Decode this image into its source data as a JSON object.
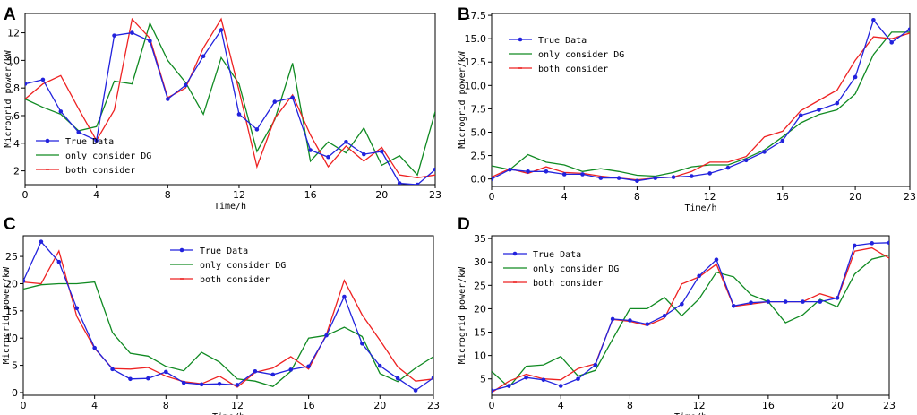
{
  "figure": {
    "legend_labels": [
      "True Data",
      "only consider DG",
      "both consider"
    ],
    "colors": {
      "true_data": "#2222dd",
      "only_dg": "#108a22",
      "both": "#ee2222"
    }
  },
  "chart_data": [
    {
      "panel": "A",
      "type": "line",
      "xlabel": "Time/h",
      "ylabel": "Microgrid power/kW",
      "xlim": [
        0,
        23
      ],
      "ylim": [
        1,
        13.4
      ],
      "xticks": [
        0,
        4,
        8,
        12,
        16,
        20,
        23
      ],
      "yticks": [
        2,
        4,
        6,
        8,
        10,
        12
      ],
      "ytick_labels": [
        "2",
        "4",
        "6",
        "8",
        "10",
        "12"
      ],
      "legend_position": "lower-left",
      "x": [
        0,
        1,
        2,
        3,
        4,
        5,
        6,
        7,
        8,
        9,
        10,
        11,
        12,
        13,
        14,
        15,
        16,
        17,
        18,
        19,
        20,
        21,
        22,
        23
      ],
      "series": [
        {
          "name": "True Data",
          "values": [
            8.3,
            8.6,
            6.3,
            4.8,
            4.2,
            11.8,
            12.0,
            11.4,
            7.2,
            8.2,
            10.3,
            12.2,
            6.1,
            5.0,
            7.0,
            7.3,
            3.5,
            3.0,
            4.1,
            3.2,
            3.4,
            1.1,
            1.0,
            2.1
          ]
        },
        {
          "name": "only consider DG",
          "values": [
            7.2,
            6.6,
            6.1,
            4.9,
            5.2,
            8.5,
            8.3,
            12.7,
            10.0,
            8.4,
            6.1,
            10.2,
            8.3,
            3.4,
            5.7,
            9.8,
            2.7,
            4.1,
            3.3,
            5.1,
            2.4,
            3.1,
            1.7,
            6.3
          ]
        },
        {
          "name": "both consider",
          "values": [
            7.2,
            8.3,
            8.9,
            6.5,
            4.2,
            6.4,
            13.0,
            11.6,
            7.3,
            8.0,
            10.9,
            13.0,
            7.8,
            2.3,
            5.8,
            7.5,
            4.6,
            2.3,
            3.8,
            2.7,
            3.7,
            1.7,
            1.5,
            1.7
          ]
        }
      ]
    },
    {
      "panel": "B",
      "type": "line",
      "xlabel": "Time/h",
      "ylabel": "Microgrid power/kW",
      "xlim": [
        0,
        23
      ],
      "ylim": [
        -0.8,
        17.7
      ],
      "xticks": [
        0,
        4,
        8,
        12,
        16,
        20,
        23
      ],
      "yticks": [
        0,
        2.5,
        5,
        7.5,
        10,
        12.5,
        15,
        17.5
      ],
      "ytick_labels": [
        "0.0",
        "2.5",
        "5.0",
        "7.5",
        "10.0",
        "12.5",
        "15.0",
        "17.5"
      ],
      "legend_position": "upper-left",
      "x": [
        0,
        1,
        2,
        3,
        4,
        5,
        6,
        7,
        8,
        9,
        10,
        11,
        12,
        13,
        14,
        15,
        16,
        17,
        18,
        19,
        20,
        21,
        22,
        23
      ],
      "series": [
        {
          "name": "True Data",
          "values": [
            0.0,
            1.0,
            0.8,
            0.8,
            0.5,
            0.5,
            0.1,
            0.1,
            -0.2,
            0.1,
            0.2,
            0.3,
            0.6,
            1.2,
            2.0,
            2.9,
            4.1,
            6.8,
            7.4,
            8.1,
            10.9,
            17.0,
            14.6,
            16.0
          ]
        },
        {
          "name": "only consider DG",
          "values": [
            1.4,
            1.0,
            2.6,
            1.8,
            1.5,
            0.8,
            1.1,
            0.8,
            0.4,
            0.3,
            0.7,
            1.3,
            1.5,
            1.5,
            2.2,
            3.1,
            4.5,
            6.0,
            6.9,
            7.4,
            9.1,
            13.3,
            15.7,
            15.7
          ]
        },
        {
          "name": "both consider",
          "values": [
            0.2,
            1.1,
            0.6,
            1.3,
            0.7,
            0.6,
            0.3,
            0.1,
            -0.1,
            0.1,
            0.2,
            0.8,
            1.8,
            1.8,
            2.4,
            4.5,
            5.1,
            7.3,
            8.4,
            9.5,
            12.7,
            15.2,
            15.0,
            15.6
          ]
        }
      ]
    },
    {
      "panel": "C",
      "type": "line",
      "xlabel": "Time/h",
      "ylabel": "Microgrid power/kW",
      "xlim": [
        0,
        23
      ],
      "ylim": [
        -0.5,
        28.8
      ],
      "xticks": [
        0,
        4,
        8,
        12,
        16,
        20,
        23
      ],
      "yticks": [
        0,
        5,
        10,
        15,
        20,
        25
      ],
      "ytick_labels": [
        "0",
        "5",
        "10",
        "15",
        "20",
        "25"
      ],
      "legend_position": "upper-center",
      "x": [
        0,
        1,
        2,
        3,
        4,
        5,
        6,
        7,
        8,
        9,
        10,
        11,
        12,
        13,
        14,
        15,
        16,
        17,
        18,
        19,
        20,
        21,
        22,
        23
      ],
      "series": [
        {
          "name": "True Data",
          "values": [
            20.5,
            27.7,
            24.0,
            15.5,
            8.2,
            4.3,
            2.5,
            2.6,
            3.8,
            1.8,
            1.5,
            1.6,
            1.4,
            3.9,
            3.3,
            4.2,
            4.8,
            10.5,
            17.6,
            9.0,
            4.9,
            2.6,
            0.4,
            2.7
          ]
        },
        {
          "name": "only consider DG",
          "values": [
            19.0,
            19.8,
            20.0,
            20.0,
            20.3,
            11.0,
            7.2,
            6.7,
            4.8,
            4.0,
            7.4,
            5.6,
            2.5,
            2.1,
            1.1,
            3.9,
            10.0,
            10.5,
            12.0,
            10.3,
            3.5,
            2.0,
            4.5,
            6.6
          ]
        },
        {
          "name": "both consider",
          "values": [
            20.3,
            20.0,
            26.0,
            14.0,
            8.1,
            4.4,
            4.3,
            4.6,
            3.0,
            2.0,
            1.6,
            3.0,
            1.0,
            3.7,
            4.5,
            6.6,
            4.3,
            10.7,
            20.6,
            14.3,
            9.6,
            4.7,
            2.1,
            2.5
          ]
        }
      ]
    },
    {
      "panel": "D",
      "type": "line",
      "xlabel": "Time/h",
      "ylabel": "Microgrid power/kW",
      "xlim": [
        0,
        23
      ],
      "ylim": [
        1.5,
        35.6
      ],
      "xticks": [
        0,
        4,
        8,
        12,
        16,
        20,
        23
      ],
      "yticks": [
        5,
        10,
        15,
        20,
        25,
        30,
        35
      ],
      "ytick_labels": [
        "5",
        "10",
        "15",
        "20",
        "25",
        "30",
        "35"
      ],
      "legend_position": "upper-left",
      "x": [
        0,
        1,
        2,
        3,
        4,
        5,
        6,
        7,
        8,
        9,
        10,
        11,
        12,
        13,
        14,
        15,
        16,
        17,
        18,
        19,
        20,
        21,
        22,
        23
      ],
      "series": [
        {
          "name": "True Data",
          "values": [
            2.5,
            3.5,
            5.3,
            4.8,
            3.5,
            5.0,
            8.0,
            17.8,
            17.5,
            16.7,
            18.5,
            21.0,
            27.0,
            30.5,
            20.6,
            21.3,
            21.5,
            21.5,
            21.5,
            21.5,
            22.3,
            33.5,
            34.0,
            34.1
          ]
        },
        {
          "name": "only consider DG",
          "values": [
            6.6,
            3.2,
            7.7,
            8.0,
            9.8,
            5.6,
            6.8,
            13.5,
            20.0,
            20.0,
            22.4,
            18.5,
            22.1,
            27.8,
            26.8,
            23.0,
            21.5,
            17.0,
            18.7,
            22.0,
            20.4,
            27.4,
            30.6,
            31.5
          ]
        },
        {
          "name": "both consider",
          "values": [
            2.1,
            4.5,
            6.0,
            5.0,
            4.8,
            7.2,
            8.2,
            17.7,
            17.3,
            16.4,
            18.0,
            25.3,
            26.8,
            29.5,
            20.5,
            21.0,
            21.5,
            21.5,
            21.5,
            23.2,
            22.1,
            32.3,
            33.0,
            30.8
          ]
        }
      ]
    }
  ]
}
